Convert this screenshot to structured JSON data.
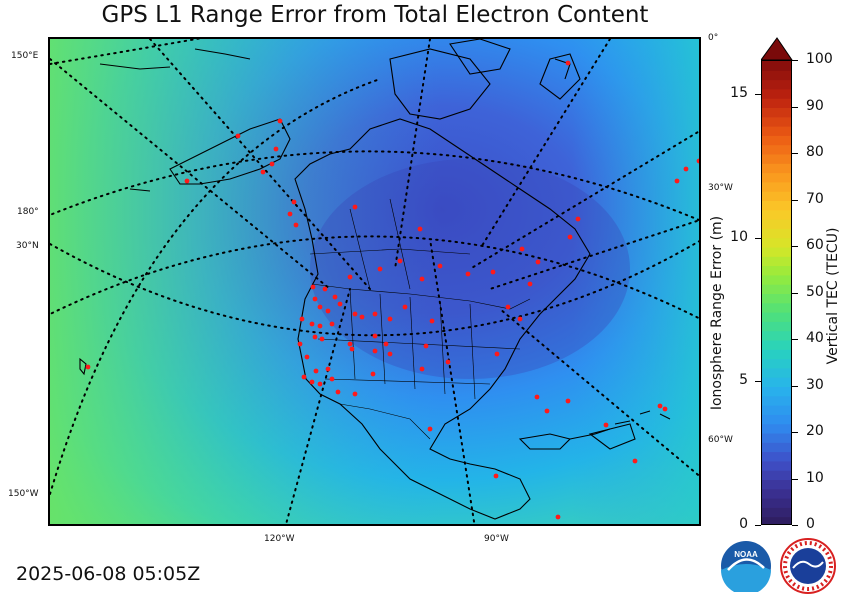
{
  "title": "GPS L1 Range Error from Total Electron Content",
  "timestamp": "2025-06-08 05:05Z",
  "map": {
    "lat_labels": [
      "150°E",
      "180°",
      "30°N",
      "150°W"
    ],
    "lon_labels_bottom": [
      "120°W",
      "90°W"
    ],
    "lon_labels_right": [
      "0°",
      "30°W",
      "60°W"
    ]
  },
  "colorbar": {
    "right_label": "Vertical TEC (TECU)",
    "left_label": "Ionosphere Range Error (m)",
    "tec_ticks": [
      "0",
      "10",
      "20",
      "30",
      "40",
      "50",
      "60",
      "70",
      "80",
      "90",
      "100"
    ],
    "range_error_ticks": [
      "0",
      "5",
      "10",
      "15"
    ],
    "tec_range": [
      0,
      100
    ],
    "range_error_range": [
      0,
      16.2
    ],
    "extend": "max"
  },
  "logos": [
    "NOAA",
    "National Weather Service"
  ],
  "colors": {
    "tec_low": "#2d1b5a",
    "tec_mid": "#2f9df0",
    "tec_high": "#8b1010",
    "stations": "#ff0000"
  },
  "icons": [
    "noaa-logo-icon",
    "nws-logo-icon"
  ]
}
